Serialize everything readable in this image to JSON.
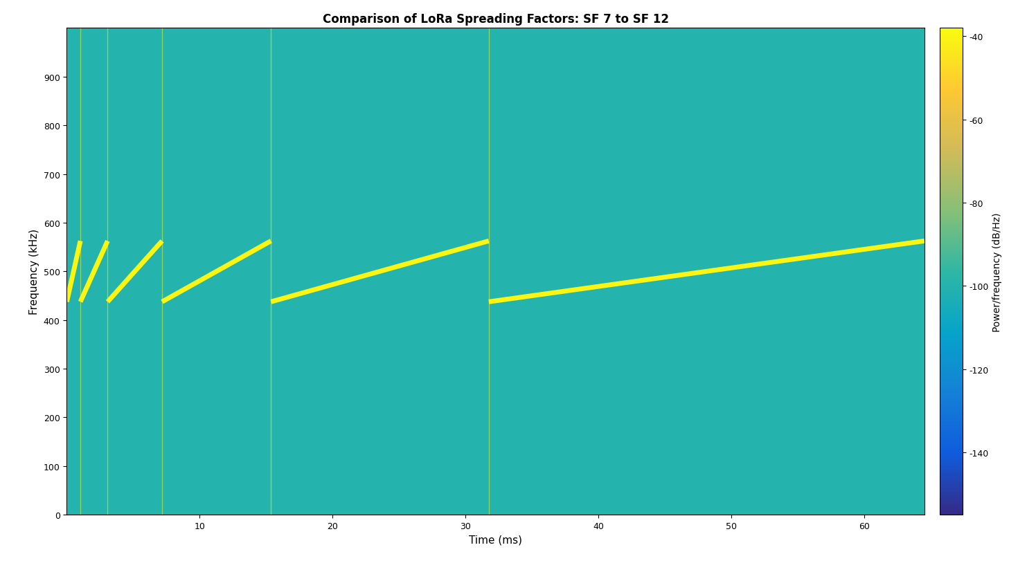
{
  "chart_data": {
    "type": "spectrogram",
    "title": "Comparison of LoRa Spreading Factors: SF 7 to SF 12",
    "x_label": "Time (ms)",
    "y_label": "Frequency (kHz)",
    "xlim": [
      0,
      64.5
    ],
    "xticks": [
      10,
      20,
      30,
      40,
      50,
      60
    ],
    "ylim": [
      0,
      1000
    ],
    "yticks": [
      0,
      100,
      200,
      300,
      400,
      500,
      600,
      700,
      800,
      900
    ],
    "background_power": -100,
    "chirp_power": -40,
    "chirps": [
      {
        "x": [
          0,
          1.024
        ],
        "y": [
          437.5,
          562.5
        ]
      },
      {
        "x": [
          1.024,
          3.072
        ],
        "y": [
          437.5,
          562.5
        ]
      },
      {
        "x": [
          3.072,
          7.168
        ],
        "y": [
          437.5,
          562.5
        ]
      },
      {
        "x": [
          7.168,
          15.36
        ],
        "y": [
          437.5,
          562.5
        ]
      },
      {
        "x": [
          15.36,
          31.744
        ],
        "y": [
          437.5,
          562.5
        ]
      },
      {
        "x": [
          31.744,
          64.512
        ],
        "y": [
          437.5,
          562.5
        ]
      }
    ],
    "colorbar": {
      "label": "Power/frequency (dB/Hz)",
      "range": [
        -155,
        -38
      ],
      "ticks": [
        -140,
        -120,
        -100,
        -80,
        -60,
        -40
      ]
    }
  }
}
